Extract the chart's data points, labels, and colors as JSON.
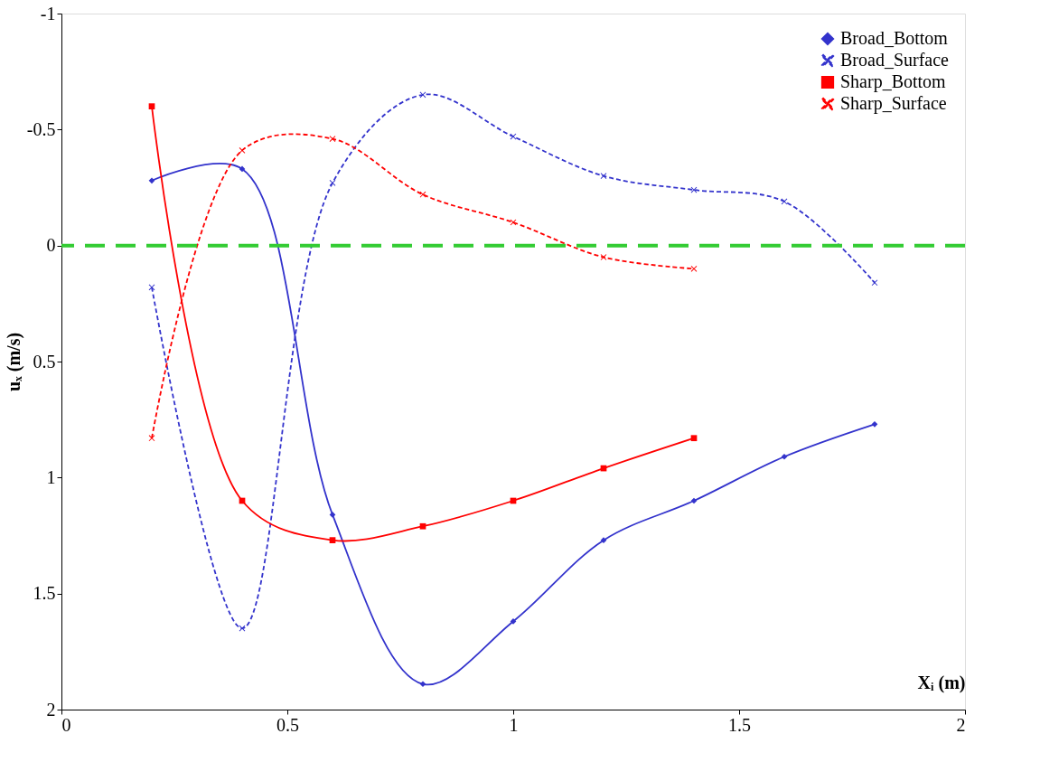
{
  "chart_data": {
    "type": "line",
    "xlabel": "Xᵢ (m)",
    "ylabel": "uₓ (m/s)",
    "x": [
      0.2,
      0.4,
      0.6,
      0.8,
      1.0,
      1.2,
      1.4,
      1.6,
      1.8
    ],
    "series": [
      {
        "name": "Broad_Bottom",
        "color": "#3333cc",
        "marker": "diamond",
        "line_style": "solid",
        "values": [
          -0.28,
          -0.33,
          1.16,
          1.89,
          1.62,
          1.27,
          1.1,
          0.91,
          0.77
        ]
      },
      {
        "name": "Broad_Surface",
        "color": "#3333cc",
        "marker": "cross",
        "line_style": "dashed",
        "values": [
          0.18,
          1.65,
          -0.27,
          -0.65,
          -0.47,
          -0.3,
          -0.24,
          -0.19,
          0.16
        ]
      },
      {
        "name": "Sharp_Bottom",
        "color": "#ff0000",
        "marker": "square",
        "line_style": "solid",
        "x": [
          0.2,
          0.4,
          0.6,
          0.8,
          1.0,
          1.2,
          1.4
        ],
        "values": [
          -0.6,
          1.1,
          1.27,
          1.21,
          1.1,
          0.96,
          0.83
        ]
      },
      {
        "name": "Sharp_Surface",
        "color": "#ff0000",
        "marker": "cross",
        "line_style": "dashed",
        "x": [
          0.2,
          0.4,
          0.6,
          0.8,
          1.0,
          1.2,
          1.4
        ],
        "values": [
          0.83,
          -0.41,
          -0.46,
          -0.22,
          -0.1,
          0.05,
          0.1
        ]
      }
    ],
    "xlim": [
      0,
      2
    ],
    "xticks": [
      0,
      0.5,
      1,
      1.5,
      2
    ],
    "ylim": [
      2,
      -1
    ],
    "yticks": [
      -1,
      -0.5,
      0,
      0.5,
      1,
      1.5,
      2
    ],
    "ref_lines": [
      {
        "axis": "y",
        "value": 0,
        "color": "#33cc33",
        "line_style": "dashed"
      }
    ],
    "grid": false,
    "legend": "top right"
  }
}
